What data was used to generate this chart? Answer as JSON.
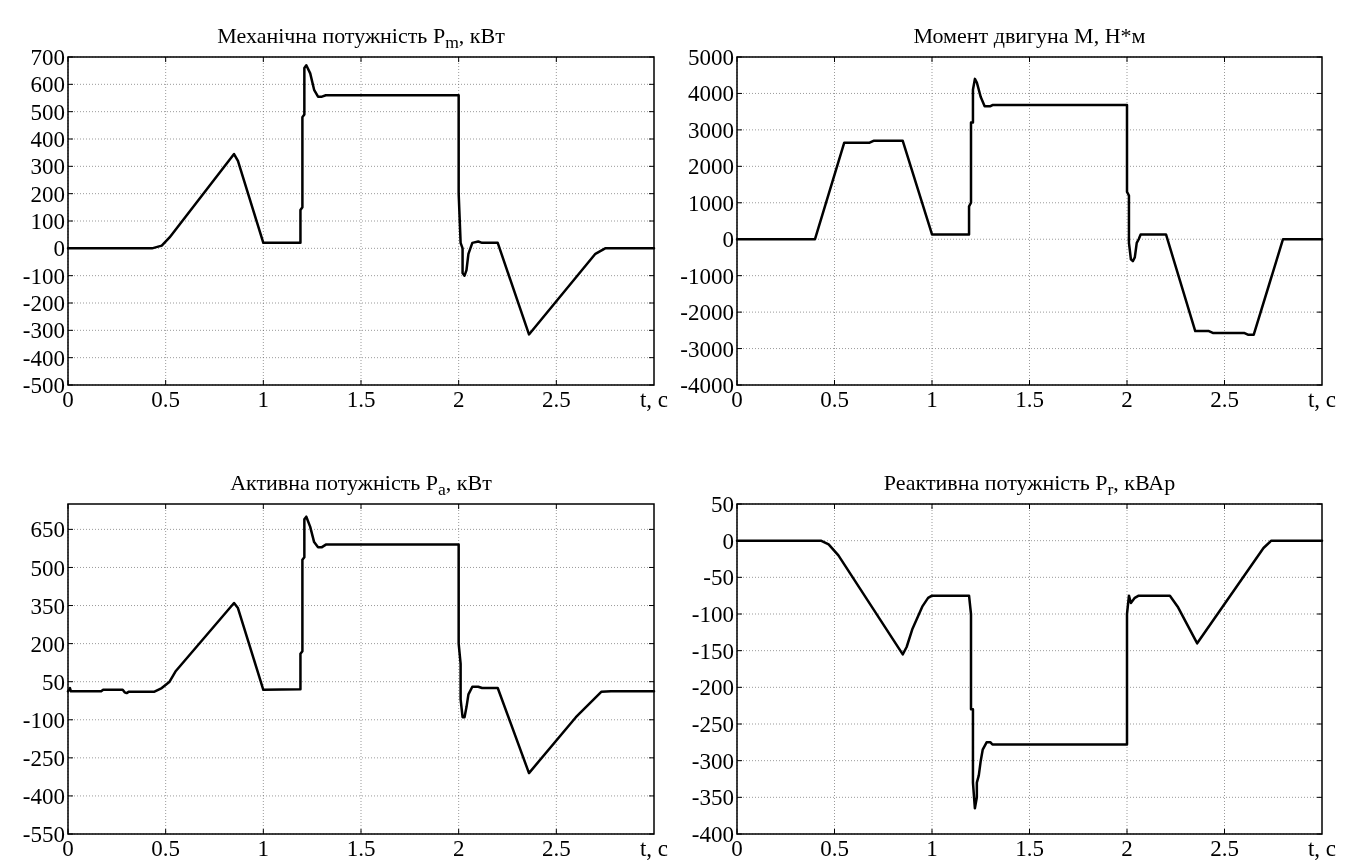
{
  "chart_data": [
    {
      "type": "line",
      "title": "Механічна потужність P$_{m}$, кВт",
      "xlabel": "t, c",
      "xlim": [
        0,
        3
      ],
      "xticks": [
        0,
        0.5,
        1,
        1.5,
        2,
        2.5
      ],
      "ylim": [
        -500,
        700
      ],
      "yticks": [
        -500,
        -400,
        -300,
        -200,
        -100,
        0,
        100,
        200,
        300,
        400,
        500,
        600,
        700
      ],
      "grid": true,
      "series": [
        {
          "color": "#000000",
          "x": [
            0,
            0.43,
            0.48,
            0.52,
            0.85,
            0.87,
            1.0,
            1.19,
            1.19,
            1.2,
            1.2,
            1.21,
            1.21,
            1.22,
            1.24,
            1.26,
            1.28,
            1.3,
            1.32,
            2.0,
            2.0,
            2.01,
            2.02,
            2.02,
            2.03,
            2.04,
            2.05,
            2.07,
            2.1,
            2.12,
            2.2,
            2.36,
            2.7,
            2.75,
            3.0
          ],
          "values": [
            0,
            0,
            10,
            40,
            345,
            320,
            20,
            20,
            140,
            150,
            480,
            490,
            660,
            670,
            640,
            580,
            555,
            555,
            560,
            560,
            200,
            20,
            0,
            -90,
            -100,
            -80,
            -20,
            20,
            25,
            20,
            20,
            -315,
            -20,
            0,
            0
          ]
        }
      ]
    },
    {
      "type": "line",
      "title": "Момент двигуна M, Н*м",
      "xlabel": "t, c",
      "xlim": [
        0,
        3
      ],
      "xticks": [
        0,
        0.5,
        1,
        1.5,
        2,
        2.5
      ],
      "ylim": [
        -4000,
        5000
      ],
      "yticks": [
        -4000,
        -3000,
        -2000,
        -1000,
        0,
        1000,
        2000,
        3000,
        4000,
        5000
      ],
      "grid": true,
      "series": [
        {
          "color": "#000000",
          "x": [
            0,
            0.4,
            0.55,
            0.68,
            0.7,
            0.85,
            1.0,
            1.19,
            1.19,
            1.2,
            1.2,
            1.21,
            1.21,
            1.22,
            1.23,
            1.25,
            1.27,
            1.3,
            1.31,
            2.0,
            2.0,
            2.01,
            2.01,
            2.02,
            2.03,
            2.04,
            2.05,
            2.06,
            2.07,
            2.2,
            2.35,
            2.42,
            2.44,
            2.6,
            2.62,
            2.65,
            2.8,
            3.0
          ],
          "values": [
            0,
            0,
            2650,
            2650,
            2700,
            2700,
            130,
            130,
            900,
            1000,
            3200,
            3200,
            4100,
            4400,
            4300,
            3900,
            3650,
            3650,
            3680,
            3680,
            1300,
            1200,
            -100,
            -550,
            -600,
            -500,
            -100,
            0,
            130,
            130,
            -2520,
            -2520,
            -2570,
            -2570,
            -2620,
            -2620,
            0,
            0
          ]
        }
      ]
    },
    {
      "type": "line",
      "title": "Активна потужність P$_{a}$, кВт",
      "xlabel": "t, c",
      "xlim": [
        0,
        3
      ],
      "xticks": [
        0,
        0.5,
        1,
        1.5,
        2,
        2.5
      ],
      "ylim": [
        -550,
        750
      ],
      "yticks": [
        -550,
        -400,
        -250,
        -100,
        50,
        200,
        350,
        500,
        650
      ],
      "grid": true,
      "series": [
        {
          "color": "#000000",
          "x": [
            0,
            0.01,
            0.015,
            0.17,
            0.18,
            0.28,
            0.29,
            0.3,
            0.31,
            0.44,
            0.48,
            0.52,
            0.55,
            0.85,
            0.87,
            1.0,
            1.19,
            1.19,
            1.2,
            1.2,
            1.21,
            1.21,
            1.22,
            1.24,
            1.26,
            1.28,
            1.3,
            1.32,
            2.0,
            2.0,
            2.01,
            2.01,
            2.02,
            2.03,
            2.04,
            2.05,
            2.07,
            2.1,
            2.12,
            2.2,
            2.36,
            2.6,
            2.73,
            2.78,
            3.0
          ],
          "values": [
            12,
            25,
            12,
            12,
            18,
            18,
            8,
            5,
            10,
            10,
            25,
            50,
            90,
            360,
            340,
            18,
            20,
            160,
            170,
            530,
            540,
            690,
            700,
            660,
            600,
            580,
            580,
            590,
            590,
            200,
            120,
            -20,
            -90,
            -90,
            -50,
            0,
            30,
            30,
            25,
            25,
            -310,
            -90,
            10,
            12,
            12
          ]
        }
      ]
    },
    {
      "type": "line",
      "title": "Реактивна потужність P$_{r}$, кВАр",
      "xlabel": "t, c",
      "xlim": [
        0,
        3
      ],
      "xticks": [
        0,
        0.5,
        1,
        1.5,
        2,
        2.5
      ],
      "ylim": [
        -400,
        50
      ],
      "yticks": [
        -400,
        -350,
        -300,
        -250,
        -200,
        -150,
        -100,
        -50,
        0,
        50
      ],
      "grid": true,
      "series": [
        {
          "color": "#000000",
          "x": [
            0,
            0.43,
            0.47,
            0.52,
            0.85,
            0.87,
            0.9,
            0.95,
            0.98,
            1.0,
            1.19,
            1.2,
            1.2,
            1.21,
            1.21,
            1.22,
            1.23,
            1.23,
            1.24,
            1.25,
            1.26,
            1.28,
            1.3,
            1.31,
            2.0,
            2.0,
            2.01,
            2.02,
            2.04,
            2.06,
            2.22,
            2.26,
            2.3,
            2.36,
            2.7,
            2.74,
            3.0
          ],
          "values": [
            0,
            0,
            -5,
            -20,
            -155,
            -145,
            -120,
            -90,
            -78,
            -75,
            -75,
            -100,
            -230,
            -230,
            -330,
            -365,
            -350,
            -330,
            -320,
            -300,
            -285,
            -275,
            -275,
            -278,
            -278,
            -100,
            -75,
            -85,
            -78,
            -75,
            -75,
            -90,
            -110,
            -140,
            -10,
            0,
            0
          ]
        }
      ]
    }
  ]
}
